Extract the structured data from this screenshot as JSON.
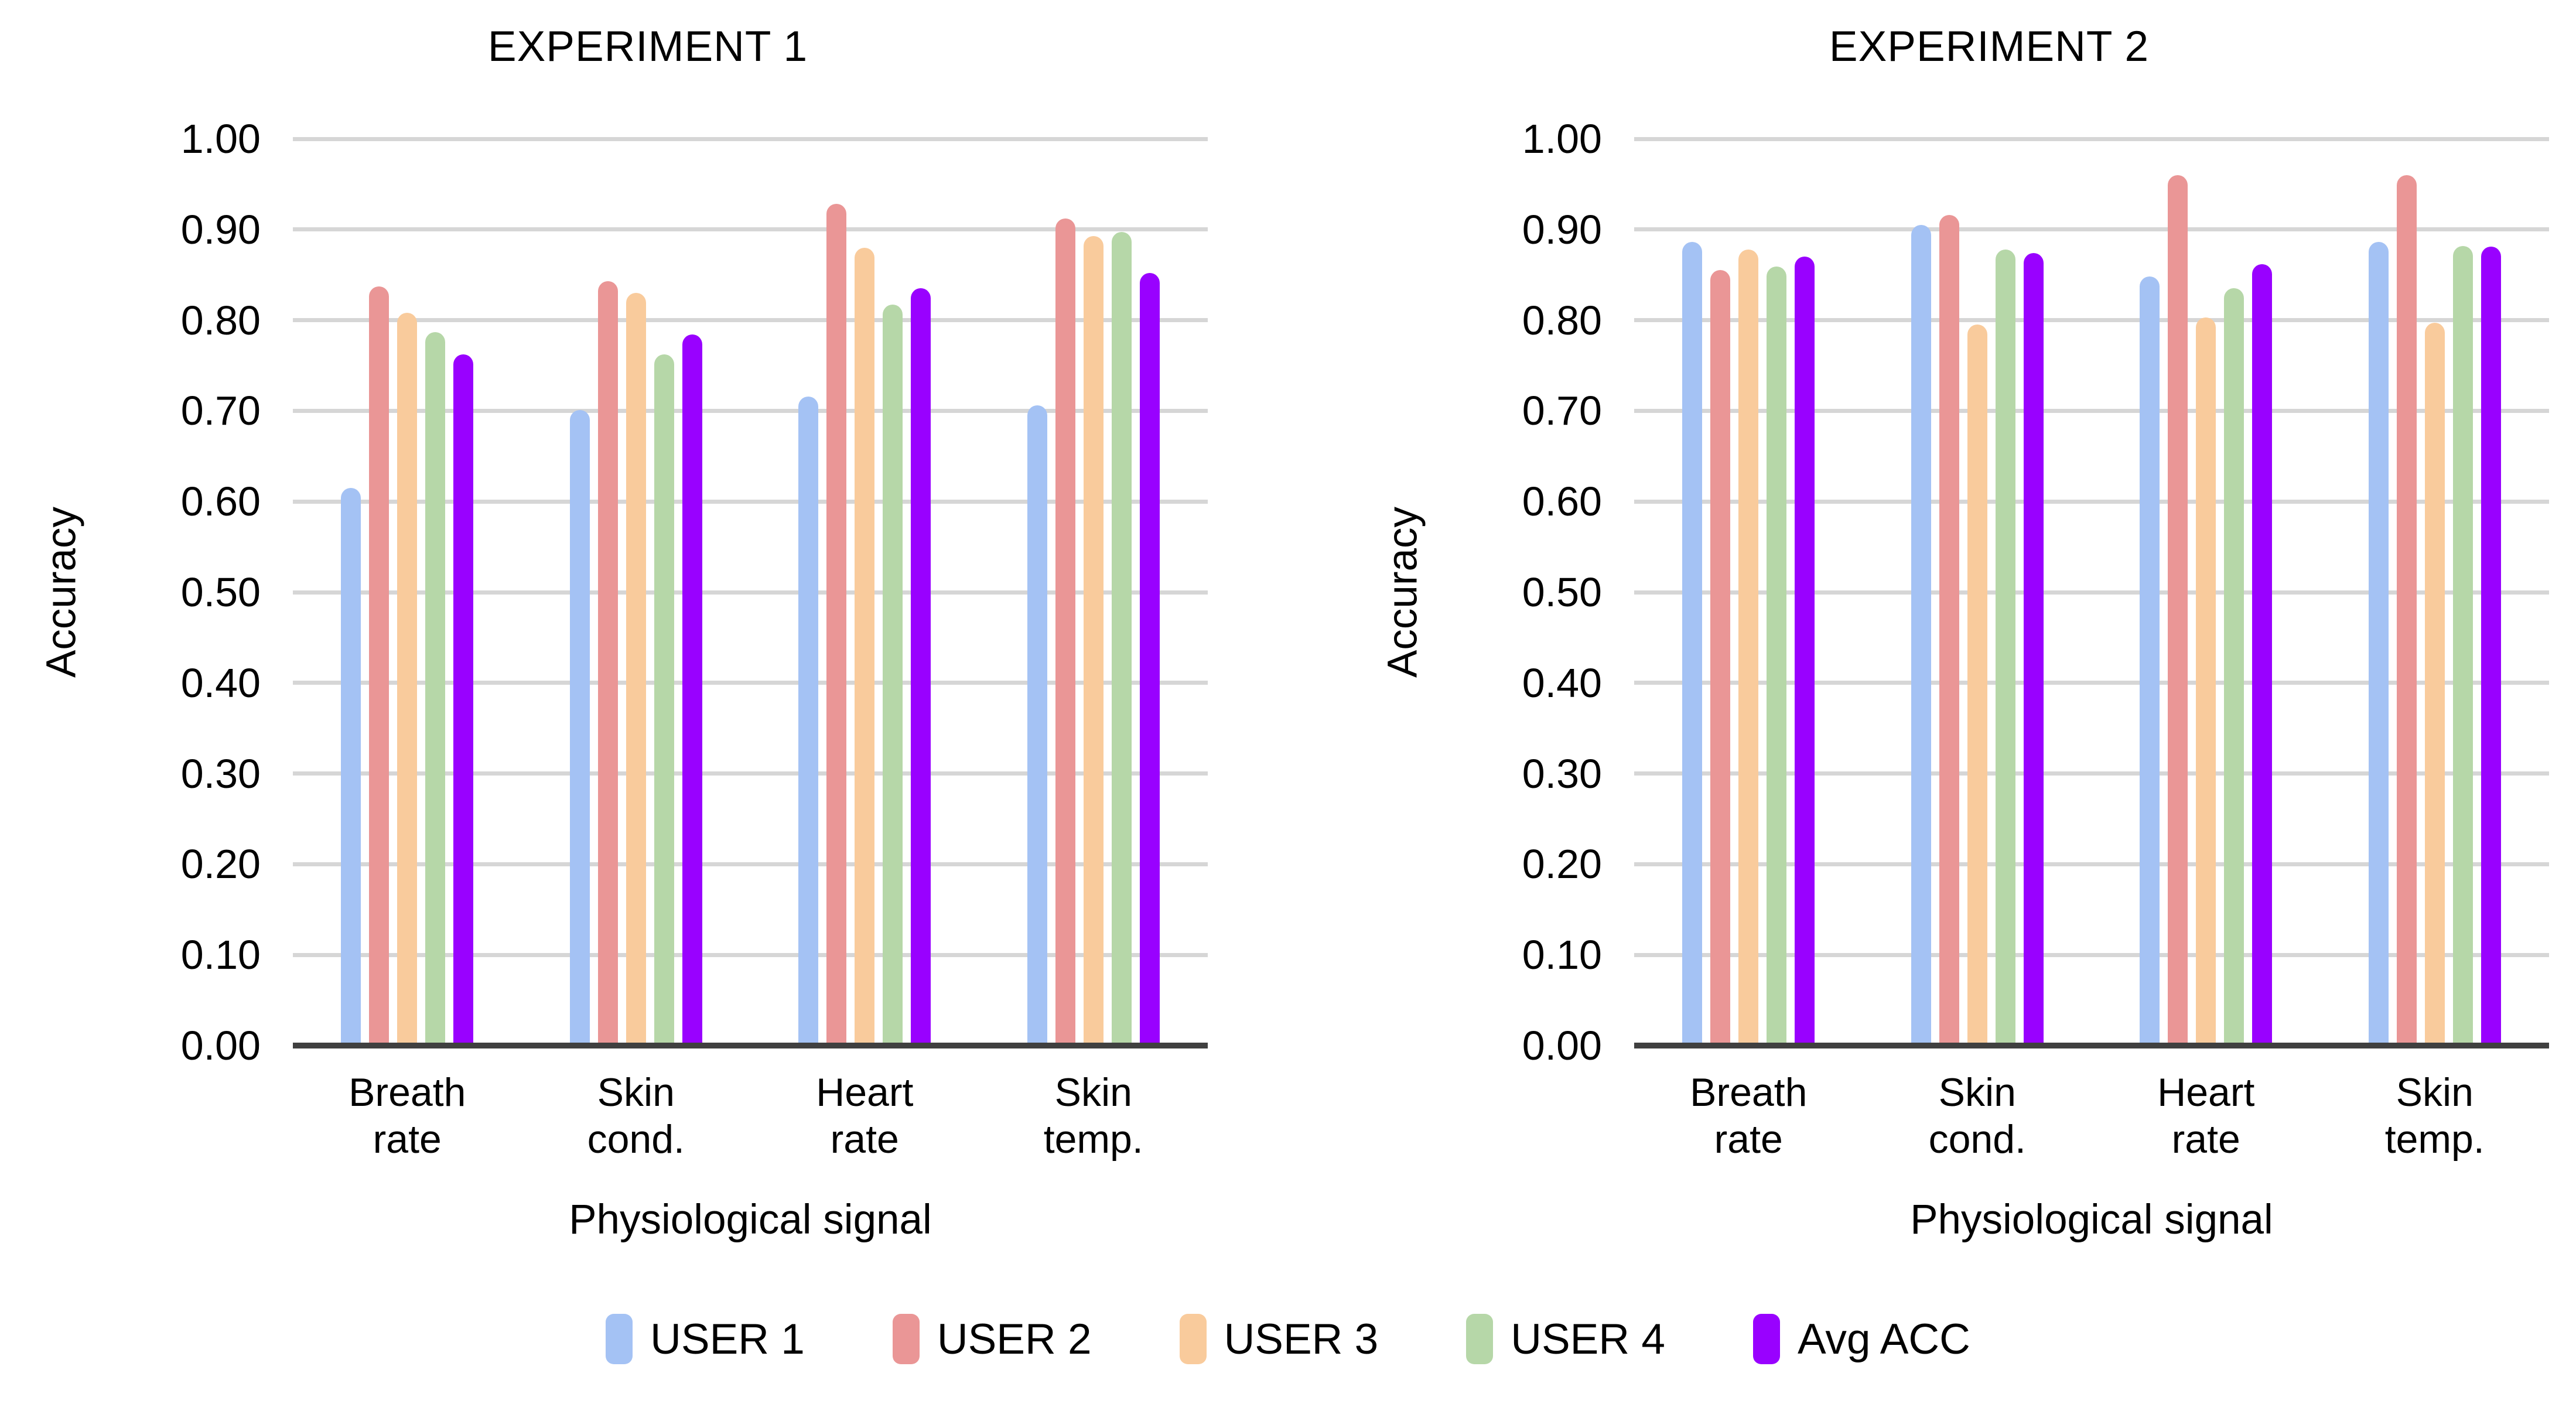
{
  "page": {
    "background_color": "#ffffff",
    "text_color": "#000000",
    "gridline_color": "#d6d6d6",
    "axis_line_color": "#404040"
  },
  "legend": {
    "position": "bottom-center",
    "swatch_shape": "vertical-rounded-rect"
  },
  "chart_data": [
    {
      "type": "bar",
      "title": "EXPERIMENT 1",
      "xlabel": "Physiological signal",
      "ylabel": "Accuracy",
      "ylim": [
        0.0,
        1.0
      ],
      "grid": true,
      "ytick_labels": [
        "1.00",
        "0.90",
        "0.80",
        "0.70",
        "0.60",
        "0.50",
        "0.40",
        "0.30",
        "0.20",
        "0.10",
        "0.00"
      ],
      "categories": [
        "Breath\nrate",
        "Skin\ncond.",
        "Heart\nrate",
        "Skin\ntemp."
      ],
      "series": [
        {
          "name": "USER 1",
          "color": "#a4c2f4",
          "values": [
            0.615,
            0.701,
            0.716,
            0.706
          ]
        },
        {
          "name": "USER 2",
          "color": "#ea9696",
          "values": [
            0.837,
            0.843,
            0.928,
            0.912
          ]
        },
        {
          "name": "USER 3",
          "color": "#f9cb9c",
          "values": [
            0.808,
            0.83,
            0.88,
            0.893
          ]
        },
        {
          "name": "USER 4",
          "color": "#b6d7a8",
          "values": [
            0.787,
            0.762,
            0.817,
            0.897
          ]
        },
        {
          "name": "Avg ACC",
          "color": "#9901ff",
          "values": [
            0.762,
            0.784,
            0.835,
            0.852
          ]
        }
      ]
    },
    {
      "type": "bar",
      "title": "EXPERIMENT 2",
      "xlabel": "Physiological signal",
      "ylabel": "Accuracy",
      "ylim": [
        0.0,
        1.0
      ],
      "grid": true,
      "ytick_labels": [
        "1.00",
        "0.90",
        "0.80",
        "0.70",
        "0.60",
        "0.50",
        "0.40",
        "0.30",
        "0.20",
        "0.10",
        "0.00"
      ],
      "categories": [
        "Breath\nrate",
        "Skin\ncond.",
        "Heart\nrate",
        "Skin\ntemp."
      ],
      "series": [
        {
          "name": "USER 1",
          "color": "#a4c2f4",
          "values": [
            0.886,
            0.905,
            0.848,
            0.886
          ]
        },
        {
          "name": "USER 2",
          "color": "#ea9696",
          "values": [
            0.855,
            0.916,
            0.96,
            0.96
          ]
        },
        {
          "name": "USER 3",
          "color": "#f9cb9c",
          "values": [
            0.878,
            0.795,
            0.803,
            0.797
          ]
        },
        {
          "name": "USER 4",
          "color": "#b6d7a8",
          "values": [
            0.859,
            0.878,
            0.835,
            0.882
          ]
        },
        {
          "name": "Avg ACC",
          "color": "#9901ff",
          "values": [
            0.87,
            0.874,
            0.862,
            0.881
          ]
        }
      ]
    }
  ]
}
